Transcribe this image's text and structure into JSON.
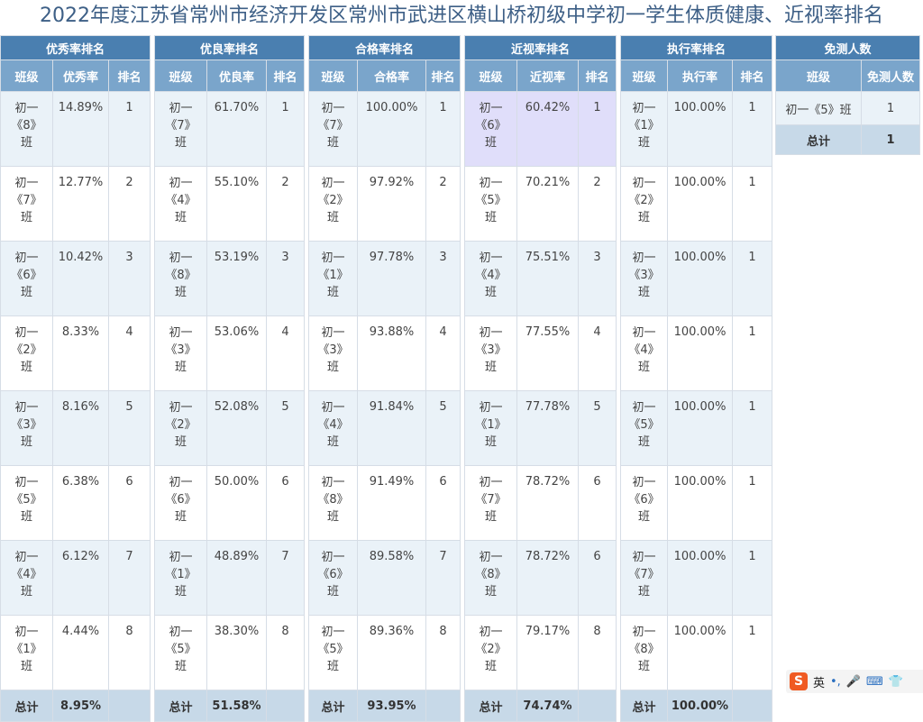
{
  "title": "2022年度江苏省常州市经济开发区常州市武进区横山桥初级中学初一学生体质健康、近视率排名",
  "sections": [
    {
      "title": "优秀率排名",
      "headers": [
        "班级",
        "优秀率",
        "排名"
      ],
      "rows": [
        {
          "c1": "初一",
          "c2": "《8》",
          "c3": "班",
          "value": "14.89%",
          "rank": "1"
        },
        {
          "c1": "初一",
          "c2": "《7》",
          "c3": "班",
          "value": "12.77%",
          "rank": "2"
        },
        {
          "c1": "初一",
          "c2": "《6》",
          "c3": "班",
          "value": "10.42%",
          "rank": "3"
        },
        {
          "c1": "初一",
          "c2": "《2》",
          "c3": "班",
          "value": "8.33%",
          "rank": "4"
        },
        {
          "c1": "初一",
          "c2": "《3》",
          "c3": "班",
          "value": "8.16%",
          "rank": "5"
        },
        {
          "c1": "初一",
          "c2": "《5》",
          "c3": "班",
          "value": "6.38%",
          "rank": "6"
        },
        {
          "c1": "初一",
          "c2": "《4》",
          "c3": "班",
          "value": "6.12%",
          "rank": "7"
        },
        {
          "c1": "初一",
          "c2": "《1》",
          "c3": "班",
          "value": "4.44%",
          "rank": "8"
        }
      ],
      "total_label": "总计",
      "total_value": "8.95%"
    },
    {
      "title": "优良率排名",
      "headers": [
        "班级",
        "优良率",
        "排名"
      ],
      "rows": [
        {
          "c1": "初一",
          "c2": "《7》",
          "c3": "班",
          "value": "61.70%",
          "rank": "1"
        },
        {
          "c1": "初一",
          "c2": "《4》",
          "c3": "班",
          "value": "55.10%",
          "rank": "2"
        },
        {
          "c1": "初一",
          "c2": "《8》",
          "c3": "班",
          "value": "53.19%",
          "rank": "3"
        },
        {
          "c1": "初一",
          "c2": "《3》",
          "c3": "班",
          "value": "53.06%",
          "rank": "4"
        },
        {
          "c1": "初一",
          "c2": "《2》",
          "c3": "班",
          "value": "52.08%",
          "rank": "5"
        },
        {
          "c1": "初一",
          "c2": "《6》",
          "c3": "班",
          "value": "50.00%",
          "rank": "6"
        },
        {
          "c1": "初一",
          "c2": "《1》",
          "c3": "班",
          "value": "48.89%",
          "rank": "7"
        },
        {
          "c1": "初一",
          "c2": "《5》",
          "c3": "班",
          "value": "38.30%",
          "rank": "8"
        }
      ],
      "total_label": "总计",
      "total_value": "51.58%"
    },
    {
      "title": "合格率排名",
      "headers": [
        "班级",
        "合格率",
        "排名"
      ],
      "rows": [
        {
          "c1": "初一",
          "c2": "《7》",
          "c3": "班",
          "value": "100.00%",
          "rank": "1"
        },
        {
          "c1": "初一",
          "c2": "《2》",
          "c3": "班",
          "value": "97.92%",
          "rank": "2"
        },
        {
          "c1": "初一",
          "c2": "《1》",
          "c3": "班",
          "value": "97.78%",
          "rank": "3"
        },
        {
          "c1": "初一",
          "c2": "《3》",
          "c3": "班",
          "value": "93.88%",
          "rank": "4"
        },
        {
          "c1": "初一",
          "c2": "《4》",
          "c3": "班",
          "value": "91.84%",
          "rank": "5"
        },
        {
          "c1": "初一",
          "c2": "《8》",
          "c3": "班",
          "value": "91.49%",
          "rank": "6"
        },
        {
          "c1": "初一",
          "c2": "《6》",
          "c3": "班",
          "value": "89.58%",
          "rank": "7"
        },
        {
          "c1": "初一",
          "c2": "《5》",
          "c3": "班",
          "value": "89.36%",
          "rank": "8"
        }
      ],
      "total_label": "总计",
      "total_value": "93.95%"
    },
    {
      "title": "近视率排名",
      "headers": [
        "班级",
        "近视率",
        "排名"
      ],
      "rows": [
        {
          "c1": "初一",
          "c2": "《6》",
          "c3": "班",
          "value": "60.42%",
          "rank": "1"
        },
        {
          "c1": "初一",
          "c2": "《5》",
          "c3": "班",
          "value": "70.21%",
          "rank": "2"
        },
        {
          "c1": "初一",
          "c2": "《4》",
          "c3": "班",
          "value": "75.51%",
          "rank": "3"
        },
        {
          "c1": "初一",
          "c2": "《3》",
          "c3": "班",
          "value": "77.55%",
          "rank": "4"
        },
        {
          "c1": "初一",
          "c2": "《1》",
          "c3": "班",
          "value": "77.78%",
          "rank": "5"
        },
        {
          "c1": "初一",
          "c2": "《7》",
          "c3": "班",
          "value": "78.72%",
          "rank": "6"
        },
        {
          "c1": "初一",
          "c2": "《8》",
          "c3": "班",
          "value": "78.72%",
          "rank": "6"
        },
        {
          "c1": "初一",
          "c2": "《2》",
          "c3": "班",
          "value": "79.17%",
          "rank": "8"
        }
      ],
      "total_label": "总计",
      "total_value": "74.74%"
    },
    {
      "title": "执行率排名",
      "headers": [
        "班级",
        "执行率",
        "排名"
      ],
      "rows": [
        {
          "c1": "初一",
          "c2": "《1》",
          "c3": "班",
          "value": "100.00%",
          "rank": "1"
        },
        {
          "c1": "初一",
          "c2": "《2》",
          "c3": "班",
          "value": "100.00%",
          "rank": "1"
        },
        {
          "c1": "初一",
          "c2": "《3》",
          "c3": "班",
          "value": "100.00%",
          "rank": "1"
        },
        {
          "c1": "初一",
          "c2": "《4》",
          "c3": "班",
          "value": "100.00%",
          "rank": "1"
        },
        {
          "c1": "初一",
          "c2": "《5》",
          "c3": "班",
          "value": "100.00%",
          "rank": "1"
        },
        {
          "c1": "初一",
          "c2": "《6》",
          "c3": "班",
          "value": "100.00%",
          "rank": "1"
        },
        {
          "c1": "初一",
          "c2": "《7》",
          "c3": "班",
          "value": "100.00%",
          "rank": "1"
        },
        {
          "c1": "初一",
          "c2": "《8》",
          "c3": "班",
          "value": "100.00%",
          "rank": "1"
        }
      ],
      "total_label": "总计",
      "total_value": "100.00%"
    }
  ],
  "exempt": {
    "title": "免测人数",
    "headers": [
      "班级",
      "免测人数"
    ],
    "row": {
      "cls": "初一《5》班",
      "count": "1"
    },
    "total_label": "总计",
    "total_value": "1"
  },
  "ime": {
    "logo": "S",
    "lang": "英",
    "punct": "•,",
    "mic": "🎤",
    "keyboard": "⌨",
    "shirt": "👕"
  },
  "colors": {
    "title": "#3d5f86",
    "group_header": "#4a7fb0",
    "sub_header": "#7aa5cb",
    "row_alt": "#eaf2f8",
    "total_row": "#c7d9e8",
    "highlight": "#e0defa"
  }
}
